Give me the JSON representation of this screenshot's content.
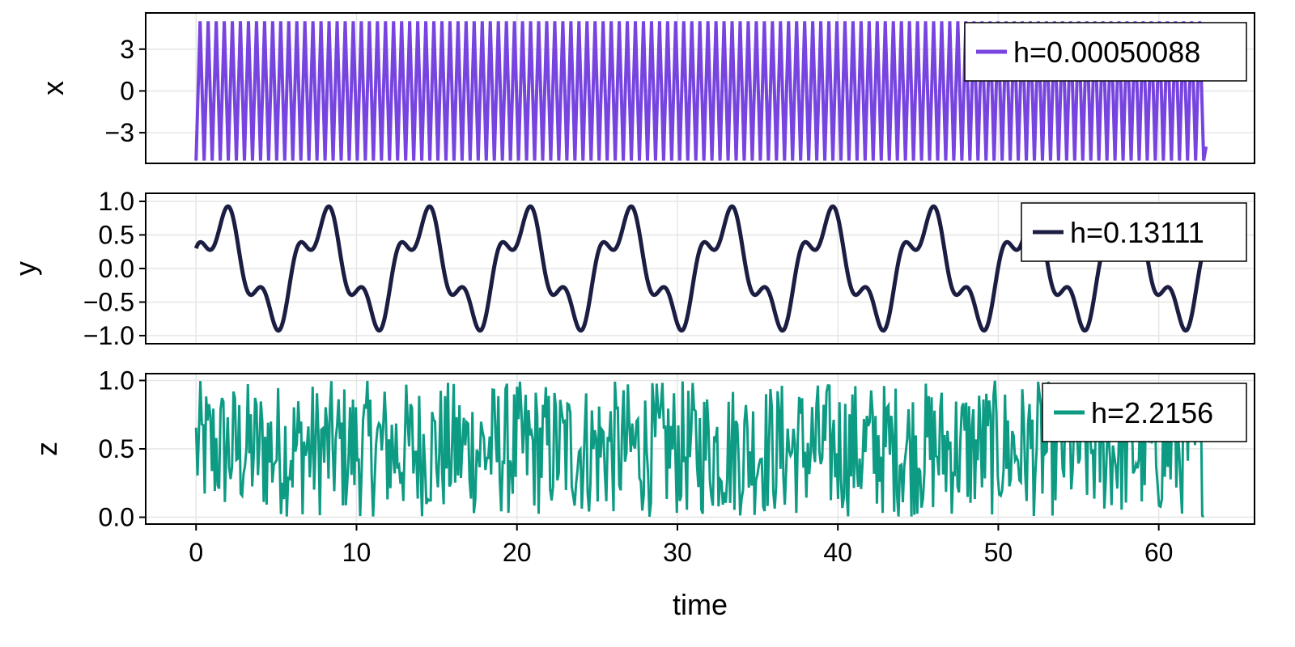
{
  "chart_data": [
    {
      "type": "line",
      "ylabel": "x",
      "xlim": [
        -3.14,
        65.97
      ],
      "ylim": [
        -5.2,
        5.6
      ],
      "yticks": [
        -3,
        0,
        3
      ],
      "ytick_labels": [
        "−3",
        "0",
        "3"
      ],
      "xticks": [
        0,
        10,
        20,
        30,
        40,
        50,
        60
      ],
      "grid": true,
      "legend_position": "top-right",
      "series": [
        {
          "name": "h=0.00050088",
          "color": "#7744e0",
          "kind": "fast-oscillation",
          "x_start": 0,
          "x_end": 62.8,
          "y_min": -5,
          "y_max": 5,
          "cycles": 125
        }
      ]
    },
    {
      "type": "line",
      "ylabel": "y",
      "xlim": [
        -3.14,
        65.97
      ],
      "ylim": [
        -1.12,
        1.12
      ],
      "yticks": [
        -1.0,
        -0.5,
        0.0,
        0.5,
        1.0
      ],
      "ytick_labels": [
        "−1.0",
        "−0.5",
        "0.0",
        "0.5",
        "1.0"
      ],
      "xticks": [
        0,
        10,
        20,
        30,
        40,
        50,
        60
      ],
      "grid": true,
      "legend_position": "top-right",
      "series": [
        {
          "name": "h=0.13111",
          "color": "#1b1e42",
          "kind": "quasi-periodic",
          "formula": "y = 0.7 sin(t) + 0.3 cos(3t)",
          "x_start": 0,
          "x_end": 62.8,
          "period": 6.283
        }
      ]
    },
    {
      "type": "line",
      "ylabel": "z",
      "xlabel": "time",
      "xlim": [
        -3.14,
        65.97
      ],
      "ylim": [
        -0.05,
        1.05
      ],
      "yticks": [
        0.0,
        0.5,
        1.0
      ],
      "ytick_labels": [
        "0.0",
        "0.5",
        "1.0"
      ],
      "xticks": [
        0,
        10,
        20,
        30,
        40,
        50,
        60
      ],
      "xtick_labels": [
        "0",
        "10",
        "20",
        "30",
        "40",
        "50",
        "60"
      ],
      "grid": true,
      "legend_position": "top-right",
      "series": [
        {
          "name": "h=2.2156",
          "color": "#0d9b84",
          "kind": "noise-uniform",
          "x_start": 0,
          "x_end": 62.8,
          "y_min": 0.0,
          "y_max": 1.0,
          "samples": 700
        }
      ]
    }
  ]
}
